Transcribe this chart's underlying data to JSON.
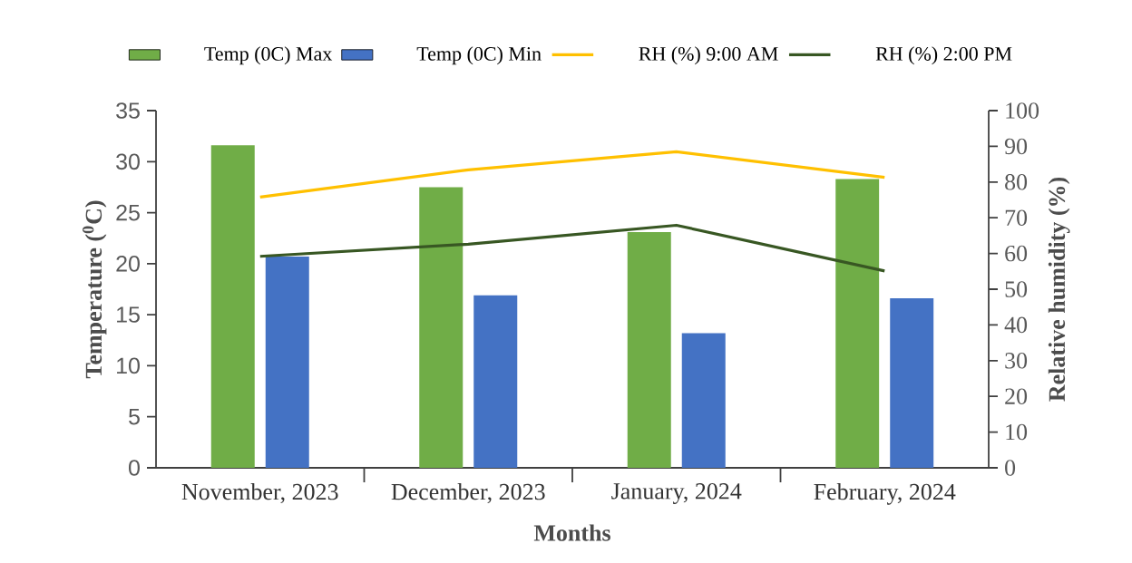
{
  "chart_data": {
    "type": "bar",
    "categories": [
      "November, 2023",
      "December, 2023",
      "January, 2024",
      "February, 2024"
    ],
    "series": [
      {
        "name": "Temp (0C) Max",
        "color": "#70ad47",
        "values": [
          31.6,
          27.5,
          23.1,
          28.3
        ]
      },
      {
        "name": "Temp (0C) Min",
        "color": "#4472c4",
        "values": [
          20.7,
          16.9,
          13.2,
          16.6
        ]
      },
      {
        "name": "RH (%) 9:00 AM",
        "type": "line",
        "axis": "y2",
        "color": "#ffc000",
        "values": [
          75.8,
          83.4,
          88.5,
          81.3
        ]
      },
      {
        "name": "RH (%) 2:00 PM",
        "type": "line",
        "axis": "y2",
        "color": "#385723",
        "values": [
          59.2,
          62.6,
          67.9,
          55.1
        ]
      }
    ],
    "xlabel": "Months",
    "ylabel": "Temperature ($^{0}$C)",
    "y2label": "Relative humidity (%)",
    "ylim": [
      0,
      35
    ],
    "yticks": [
      0,
      5,
      10,
      15,
      20,
      25,
      30,
      35
    ],
    "y2lim": [
      0,
      100
    ],
    "y2ticks": [
      0,
      10,
      20,
      30,
      40,
      50,
      60,
      70,
      80,
      90,
      100
    ],
    "legend": "top",
    "marker": "none"
  }
}
